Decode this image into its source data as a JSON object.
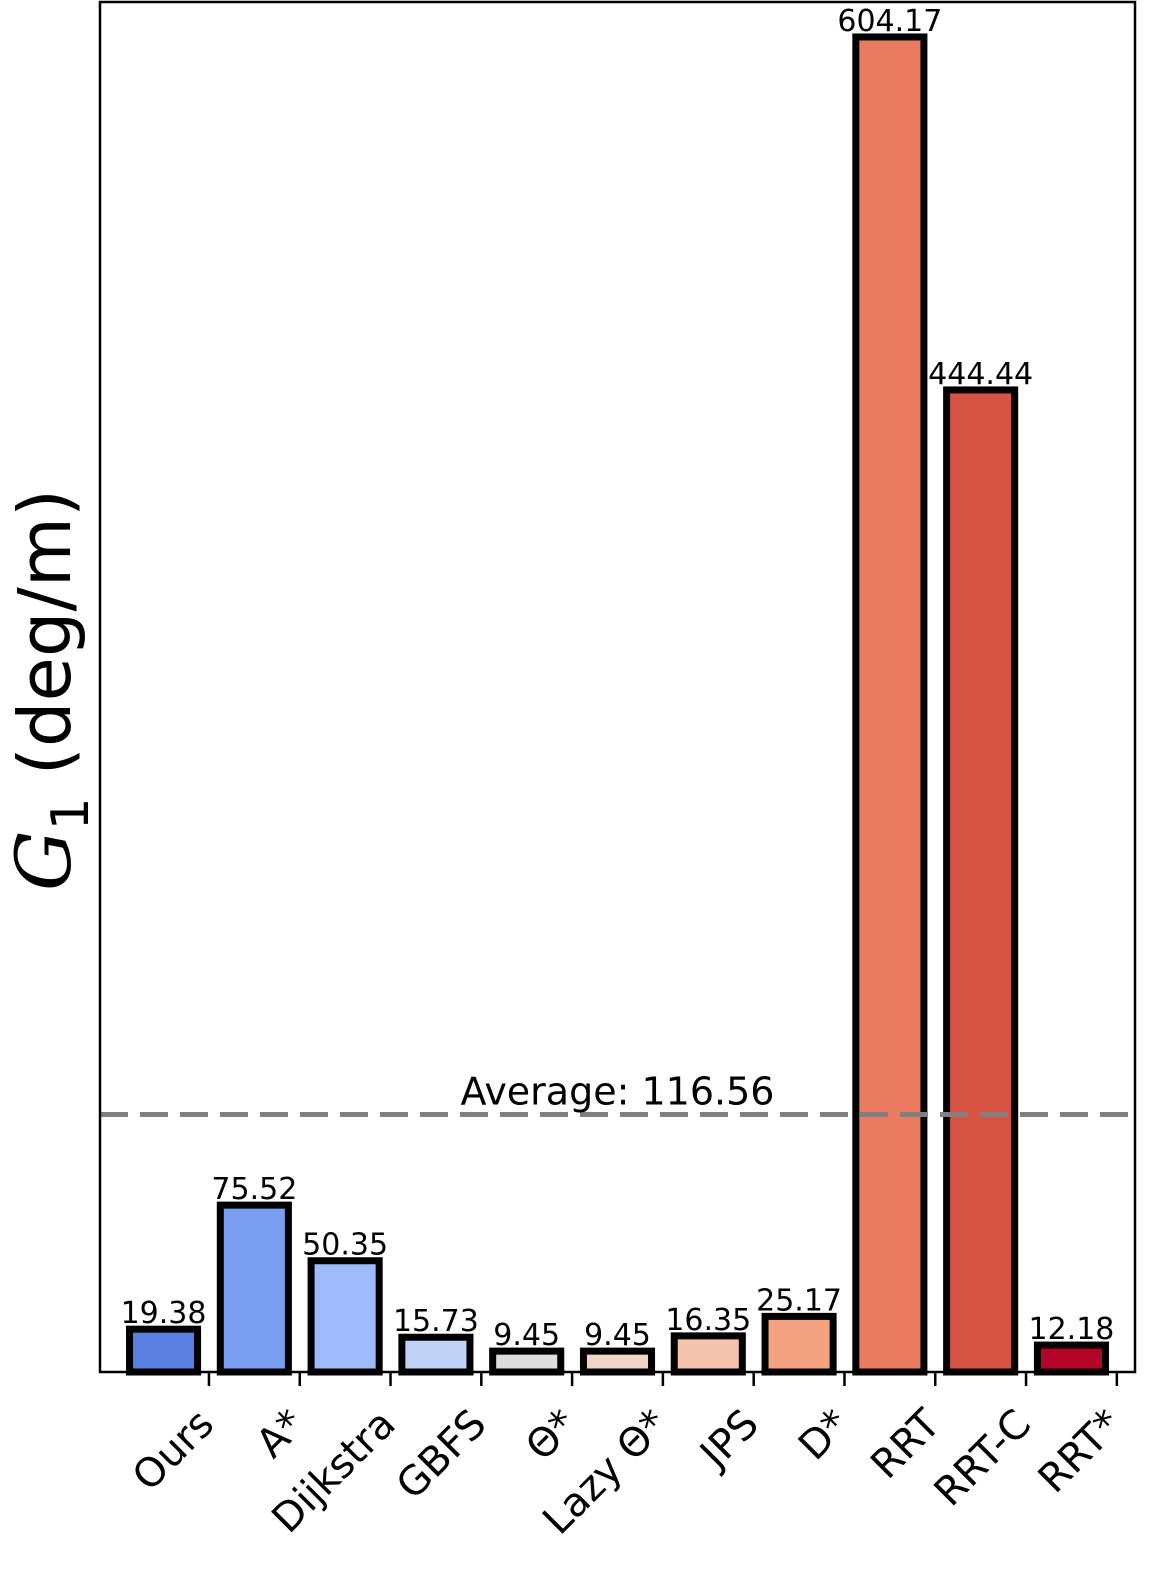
{
  "chart_data": {
    "type": "bar",
    "categories": [
      "Ours",
      "A*",
      "Dijkstra",
      "GBFS",
      "Θ*",
      "Lazy Θ*",
      "JPS",
      "D*",
      "RRT",
      "RRT-C",
      "RRT*"
    ],
    "values": [
      19.38,
      75.52,
      50.35,
      15.73,
      9.45,
      9.45,
      16.35,
      25.17,
      604.17,
      444.44,
      12.18
    ],
    "value_labels": [
      "19.38",
      "75.52",
      "50.35",
      "15.73",
      "9.45",
      "9.45",
      "16.35",
      "25.17",
      "604.17",
      "444.44",
      "12.18"
    ],
    "colors": [
      "#5b7fe0",
      "#7a9ff2",
      "#9ebcfb",
      "#bfd3f6",
      "#dcdde0",
      "#eed5c8",
      "#f5c3ab",
      "#f3a282",
      "#eb7b60",
      "#d75445",
      "#b40426"
    ],
    "ylabel_symbol": "G",
    "ylabel_subscript": "1",
    "ylabel_unit": "(deg/m)",
    "ylim": [
      0,
      620
    ],
    "yticks_shown": false,
    "grid": false,
    "average": {
      "value": 116.56,
      "label": "Average: 116.56",
      "color": "#808080",
      "style": "dashed"
    }
  }
}
